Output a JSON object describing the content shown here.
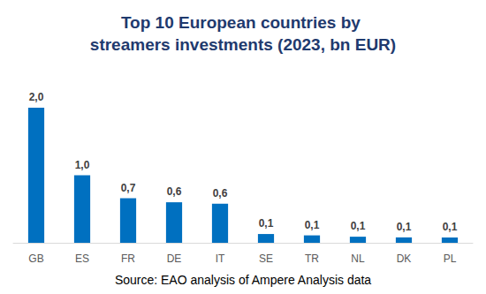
{
  "chart_data": {
    "type": "bar",
    "title": "Top 10 European countries by streamers investments (2023, bn EUR)",
    "annotation": "Source: EAO analysis of Ampere Analysis data",
    "categories": [
      "GB",
      "ES",
      "FR",
      "DE",
      "IT",
      "SE",
      "TR",
      "NL",
      "DK",
      "PL"
    ],
    "values": [
      2.0,
      1.0,
      0.66,
      0.6,
      0.58,
      0.13,
      0.11,
      0.09,
      0.08,
      0.08
    ],
    "value_labels": [
      "2,0",
      "1,0",
      "0,7",
      "0,6",
      "0,6",
      "0,1",
      "0,1",
      "0,1",
      "0,1",
      "0,1"
    ],
    "color": "#0070c0",
    "data_labels": true,
    "grid": false,
    "tick_labels": "x"
  }
}
